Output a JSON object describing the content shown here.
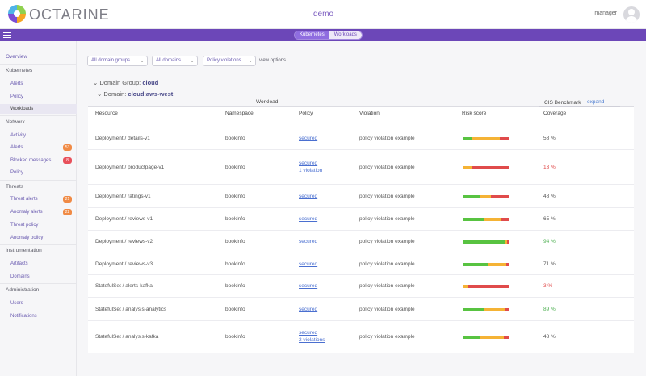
{
  "header": {
    "brand": "OCTARINE",
    "context": "demo",
    "user": "manager"
  },
  "topnav": {
    "tabs": [
      "Kubernetes",
      "Workloads"
    ],
    "active": 0
  },
  "sidebar": {
    "overview": "Overview",
    "kubernetes": {
      "label": "Kubernetes",
      "items": [
        "Alerts",
        "Policy",
        "Workloads"
      ]
    },
    "network": {
      "label": "Network",
      "items": [
        {
          "label": "Activity"
        },
        {
          "label": "Alerts",
          "badge": "53"
        },
        {
          "label": "Blocked messages",
          "badge": "8"
        },
        {
          "label": "Policy"
        }
      ]
    },
    "threats": {
      "label": "Threats",
      "items": [
        {
          "label": "Threat alerts",
          "badge": "21"
        },
        {
          "label": "Anomaly alerts",
          "badge": "22"
        },
        {
          "label": "Threat policy"
        },
        {
          "label": "Anomaly policy"
        }
      ]
    },
    "instrumentation": {
      "label": "Instrumentation",
      "items": [
        "Artifacts",
        "Domains"
      ]
    },
    "administration": {
      "label": "Administration",
      "items": [
        "Users",
        "Notifications"
      ]
    }
  },
  "filters": {
    "domain_groups": "All domain groups",
    "domains": "All domains",
    "violations": "Policy violations",
    "view_options": "view options"
  },
  "domain_group": {
    "label": "Domain Group:",
    "value": "cloud"
  },
  "domain": {
    "label": "Domain:",
    "value": "cloud:aws-west"
  },
  "table": {
    "group_workload": "Workload",
    "group_cis": "CIS Benchmark",
    "expand": "expand",
    "columns": [
      "Resource",
      "Namespace",
      "Policy",
      "Violation",
      "Risk score",
      "Coverage"
    ],
    "rows": [
      {
        "resource": "Deployment / details-v1",
        "namespace": "bookinfo",
        "policy": "secured",
        "policy2": "",
        "violation": "policy violation example",
        "risk": [
          0.2,
          0.6,
          0.2
        ],
        "coverage": "58 %",
        "cov_level": "neutral"
      },
      {
        "resource": "Deployment / productpage-v1",
        "namespace": "bookinfo",
        "policy": "secured",
        "policy2": "1 violation",
        "violation": "policy violation example",
        "risk": [
          0.0,
          0.2,
          0.8
        ],
        "coverage": "13 %",
        "cov_level": "low"
      },
      {
        "resource": "Deployment / ratings-v1",
        "namespace": "bookinfo",
        "policy": "secured",
        "policy2": "",
        "violation": "policy violation example",
        "risk": [
          0.38,
          0.24,
          0.38
        ],
        "coverage": "48 %",
        "cov_level": "neutral"
      },
      {
        "resource": "Deployment / reviews-v1",
        "namespace": "bookinfo",
        "policy": "secured",
        "policy2": "",
        "violation": "policy violation example",
        "risk": [
          0.46,
          0.38,
          0.16
        ],
        "coverage": "65 %",
        "cov_level": "neutral"
      },
      {
        "resource": "Deployment / reviews-v2",
        "namespace": "bookinfo",
        "policy": "secured",
        "policy2": "",
        "violation": "policy violation example",
        "risk": [
          0.93,
          0.04,
          0.03
        ],
        "coverage": "94 %",
        "cov_level": "high"
      },
      {
        "resource": "Deployment / reviews-v3",
        "namespace": "bookinfo",
        "policy": "secured",
        "policy2": "",
        "violation": "policy violation example",
        "risk": [
          0.55,
          0.4,
          0.05
        ],
        "coverage": "71 %",
        "cov_level": "neutral"
      },
      {
        "resource": "StatefulSet / alerts-kafka",
        "namespace": "bookinfo",
        "policy": "secured",
        "policy2": "",
        "violation": "policy violation example",
        "risk": [
          0.0,
          0.1,
          0.9
        ],
        "coverage": "3 %",
        "cov_level": "low"
      },
      {
        "resource": "StatefulSet / analysis-analytics",
        "namespace": "bookinfo",
        "policy": "secured",
        "policy2": "",
        "violation": "policy violation example",
        "risk": [
          0.45,
          0.47,
          0.08
        ],
        "coverage": "89 %",
        "cov_level": "high"
      },
      {
        "resource": "StatefulSet / analysis-kafka",
        "namespace": "bookinfo",
        "policy": "secured",
        "policy2": "2 violations",
        "violation": "policy violation example",
        "risk": [
          0.38,
          0.52,
          0.1
        ],
        "coverage": "48 %",
        "cov_level": "neutral"
      }
    ]
  }
}
